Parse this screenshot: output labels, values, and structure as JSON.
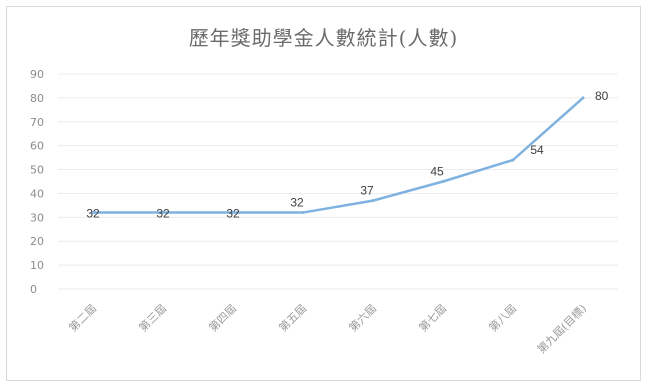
{
  "chart_data": {
    "type": "line",
    "title": "歷年獎助學金人數統計(人數)",
    "categories": [
      "第二屆",
      "第三屆",
      "第四屆",
      "第五屆",
      "第六屆",
      "第七屆",
      "第八屆",
      "第九屆(目標)"
    ],
    "values": [
      32,
      32,
      32,
      32,
      37,
      45,
      54,
      80
    ],
    "ylim": [
      0,
      90
    ],
    "yticks": [
      0,
      10,
      20,
      30,
      40,
      50,
      60,
      70,
      80,
      90
    ],
    "xlabel": "",
    "ylabel": "",
    "grid": true,
    "legend": "none",
    "line_color": "#7fb2e0"
  }
}
